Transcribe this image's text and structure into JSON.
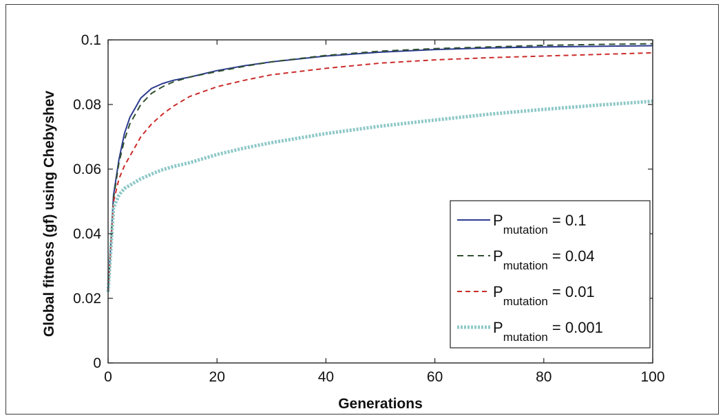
{
  "chart_data": {
    "type": "line",
    "xlabel": "Generations",
    "ylabel": "Global fitness (gf) using Chebyshev",
    "xlim": [
      0,
      100
    ],
    "ylim": [
      0,
      0.1
    ],
    "x_ticks": [
      "0",
      "20",
      "40",
      "60",
      "80",
      "100"
    ],
    "y_ticks": [
      "0",
      "0.02",
      "0.04",
      "0.06",
      "0.08",
      "0.1"
    ],
    "grid": false,
    "legend_position": "bottom-right",
    "x": [
      0,
      1,
      2,
      3,
      4,
      5,
      6,
      8,
      10,
      12,
      15,
      20,
      25,
      30,
      40,
      50,
      60,
      70,
      80,
      90,
      100
    ],
    "series": [
      {
        "name_main": "P",
        "name_sub": "mutation",
        "name_value": "= 0.1",
        "color": "#2b3a8f",
        "dash": "",
        "width": 2,
        "values": [
          0.022,
          0.052,
          0.063,
          0.071,
          0.076,
          0.079,
          0.082,
          0.085,
          0.0865,
          0.0875,
          0.0885,
          0.0905,
          0.092,
          0.0932,
          0.095,
          0.0962,
          0.097,
          0.0975,
          0.0978,
          0.098,
          0.0982
        ]
      },
      {
        "name_main": "P",
        "name_sub": "mutation",
        "name_value": "= 0.04",
        "color": "#2f4f2f",
        "dash": "9 6",
        "width": 2,
        "values": [
          0.022,
          0.051,
          0.062,
          0.069,
          0.074,
          0.077,
          0.08,
          0.0835,
          0.0855,
          0.087,
          0.0885,
          0.0902,
          0.0918,
          0.0932,
          0.0952,
          0.0965,
          0.0973,
          0.0978,
          0.0983,
          0.0986,
          0.0988
        ]
      },
      {
        "name_main": "P",
        "name_sub": "mutation",
        "name_value": "= 0.01",
        "color": "#cc2a2a",
        "dash": "7 5",
        "width": 2,
        "values": [
          0.022,
          0.05,
          0.057,
          0.061,
          0.064,
          0.067,
          0.07,
          0.074,
          0.077,
          0.0795,
          0.0825,
          0.0855,
          0.0875,
          0.0892,
          0.0912,
          0.0928,
          0.0938,
          0.0945,
          0.095,
          0.0955,
          0.096
        ]
      },
      {
        "name_main": "P",
        "name_sub": "mutation",
        "name_value": "= 0.001",
        "color": "#8fc8c8",
        "dash": "3 2",
        "width": 5,
        "values": [
          0.022,
          0.048,
          0.052,
          0.054,
          0.055,
          0.056,
          0.057,
          0.0585,
          0.0598,
          0.0608,
          0.062,
          0.0645,
          0.0665,
          0.0682,
          0.071,
          0.0733,
          0.0752,
          0.077,
          0.0785,
          0.0798,
          0.081
        ]
      }
    ]
  }
}
